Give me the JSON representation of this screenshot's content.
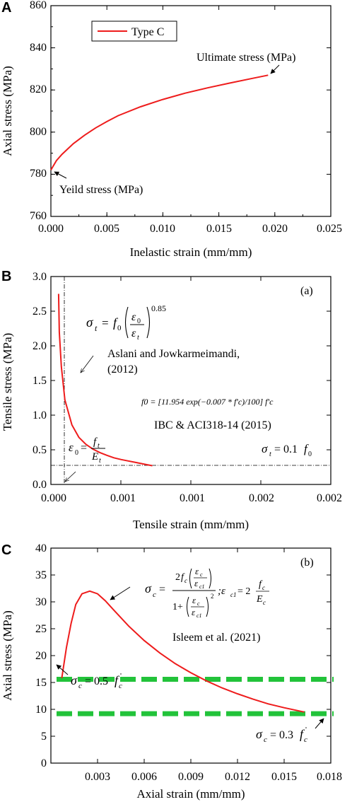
{
  "colors": {
    "curve": "#ee1c1c",
    "dashed": "#22c33a",
    "axis": "#000000"
  },
  "chart_data": [
    {
      "panel": "A",
      "type": "line",
      "xlabel": "Inelastic strain (mm/mm)",
      "ylabel": "Axial stress (MPa)",
      "xlim": [
        0,
        0.025
      ],
      "ylim": [
        760,
        860
      ],
      "xticks": [
        "0.000",
        "0.005",
        "0.010",
        "0.015",
        "0.020",
        "0.025"
      ],
      "yticks": [
        "760",
        "780",
        "800",
        "820",
        "840",
        "860"
      ],
      "legend": {
        "position": "top-left",
        "entries": [
          "Type C"
        ]
      },
      "series": [
        {
          "name": "Type C",
          "x": [
            0,
            0.0005,
            0.001,
            0.002,
            0.003,
            0.004,
            0.005,
            0.006,
            0.008,
            0.01,
            0.012,
            0.014,
            0.016,
            0.018,
            0.0194
          ],
          "y": [
            782,
            786.5,
            789.5,
            794.5,
            798.5,
            802,
            805,
            807.8,
            812,
            815.5,
            818.5,
            821,
            823.3,
            825.5,
            827
          ]
        }
      ],
      "annotations": [
        "Ultimate stress (MPa)",
        "Yeild stress (MPa)"
      ]
    },
    {
      "panel": "B",
      "tag": "(a)",
      "type": "line",
      "xlabel": "Tensile strain (mm/mm)",
      "ylabel": "Tensile stress (MPa)",
      "ylim": [
        0,
        3.0
      ],
      "xticks": [
        "0.000",
        "0.001",
        "0.001",
        "0.002",
        "0.002"
      ],
      "yticks": [
        "0.0",
        "0.5",
        "1.0",
        "1.5",
        "2.0",
        "2.5",
        "3.0"
      ],
      "series": [
        {
          "tick_pos": [
            0.11,
            0.12,
            0.15,
            0.2,
            0.3,
            0.4,
            0.5,
            0.6,
            0.7,
            0.8,
            0.9,
            1.0,
            1.1,
            1.2,
            1.35,
            1.45
          ],
          "y": [
            2.75,
            2.2,
            1.7,
            1.22,
            0.86,
            0.68,
            0.58,
            0.51,
            0.46,
            0.42,
            0.385,
            0.36,
            0.34,
            0.32,
            0.29,
            0.27
          ]
        }
      ],
      "equations": {
        "sigma_t_lhs": "σ",
        "sigma_t_sub": "t",
        "sigma_t_eq": "=",
        "sigma_t_f": "f",
        "sigma_t_f_sub": "0",
        "eps0": "ε",
        "eps0_sub": "0",
        "epst": "ε",
        "epst_sub": "t",
        "exponent": "0.85",
        "f0_formula": "f0 = [11.954 exp(−0.007 * f'c)/100] f'c",
        "eps0_lhs": "ε",
        "eps0_lhs_sub": "0",
        "ft": "f",
        "ft_sub": "t",
        "Et": "E",
        "Et_sub": "t",
        "sigma_min_lhs": "σ",
        "sigma_min_sub": "t",
        "sigma_min_rhs": "= 0.1",
        "sigma_min_f": "f",
        "sigma_min_f_sub": "0"
      },
      "annotations": [
        "Aslani and Jowkarmeimandi,",
        "(2012)",
        "IBC & ACI318-14 (2015)"
      ]
    },
    {
      "panel": "C",
      "tag": "(b)",
      "type": "line",
      "xlabel": "Axial strain (mm/mm)",
      "ylabel": "Axial stress (MPa)",
      "xlim": [
        0,
        0.018
      ],
      "ylim": [
        0,
        40
      ],
      "xticks": [
        "0.003",
        "0.006",
        "0.009",
        "0.012",
        "0.015",
        "0.018"
      ],
      "yticks": [
        "0",
        "5",
        "10",
        "15",
        "20",
        "25",
        "30",
        "35",
        "40"
      ],
      "series": [
        {
          "x": [
            0.0007,
            0.001,
            0.0013,
            0.0016,
            0.002,
            0.0025,
            0.003,
            0.0035,
            0.004,
            0.005,
            0.006,
            0.007,
            0.008,
            0.009,
            0.01,
            0.011,
            0.012,
            0.013,
            0.014,
            0.015,
            0.0163
          ],
          "y": [
            15.8,
            21.5,
            26,
            29.5,
            31.5,
            32,
            31.5,
            30.2,
            28.6,
            25.5,
            22.8,
            20.5,
            18.5,
            16.8,
            15.3,
            14,
            12.9,
            11.9,
            11.0,
            10.3,
            9.5
          ]
        },
        {
          "style": "dashed",
          "y_level": 15.6
        },
        {
          "style": "dashed",
          "y_level": 9.2
        }
      ],
      "equations": {
        "sigma_c": "σ",
        "sigma_c_sub": "c",
        "two_fc": "2",
        "fc": "f",
        "fc_sub": "c",
        "eps_c": "ε",
        "eps_c_sub": "c",
        "eps_c1": "ε",
        "eps_c1_sub": "c1",
        "one_plus": "1+",
        "square": "2",
        "ec1_def": ";ε",
        "ec1_def_sub": "c1",
        "ec1_eq": "= 2",
        "Ec": "E",
        "Ec_sub": "c",
        "half_lhs": "σ",
        "half_sub": "c",
        "half_rhs": "= 0.5",
        "half_f": "f",
        "half_f_sub": "c",
        "third_lhs": "σ",
        "third_sub": "c",
        "third_rhs": "= 0.3",
        "third_f": "f",
        "third_f_sub": "c"
      },
      "annotations": [
        "Isleem et al. (2021)"
      ]
    }
  ]
}
